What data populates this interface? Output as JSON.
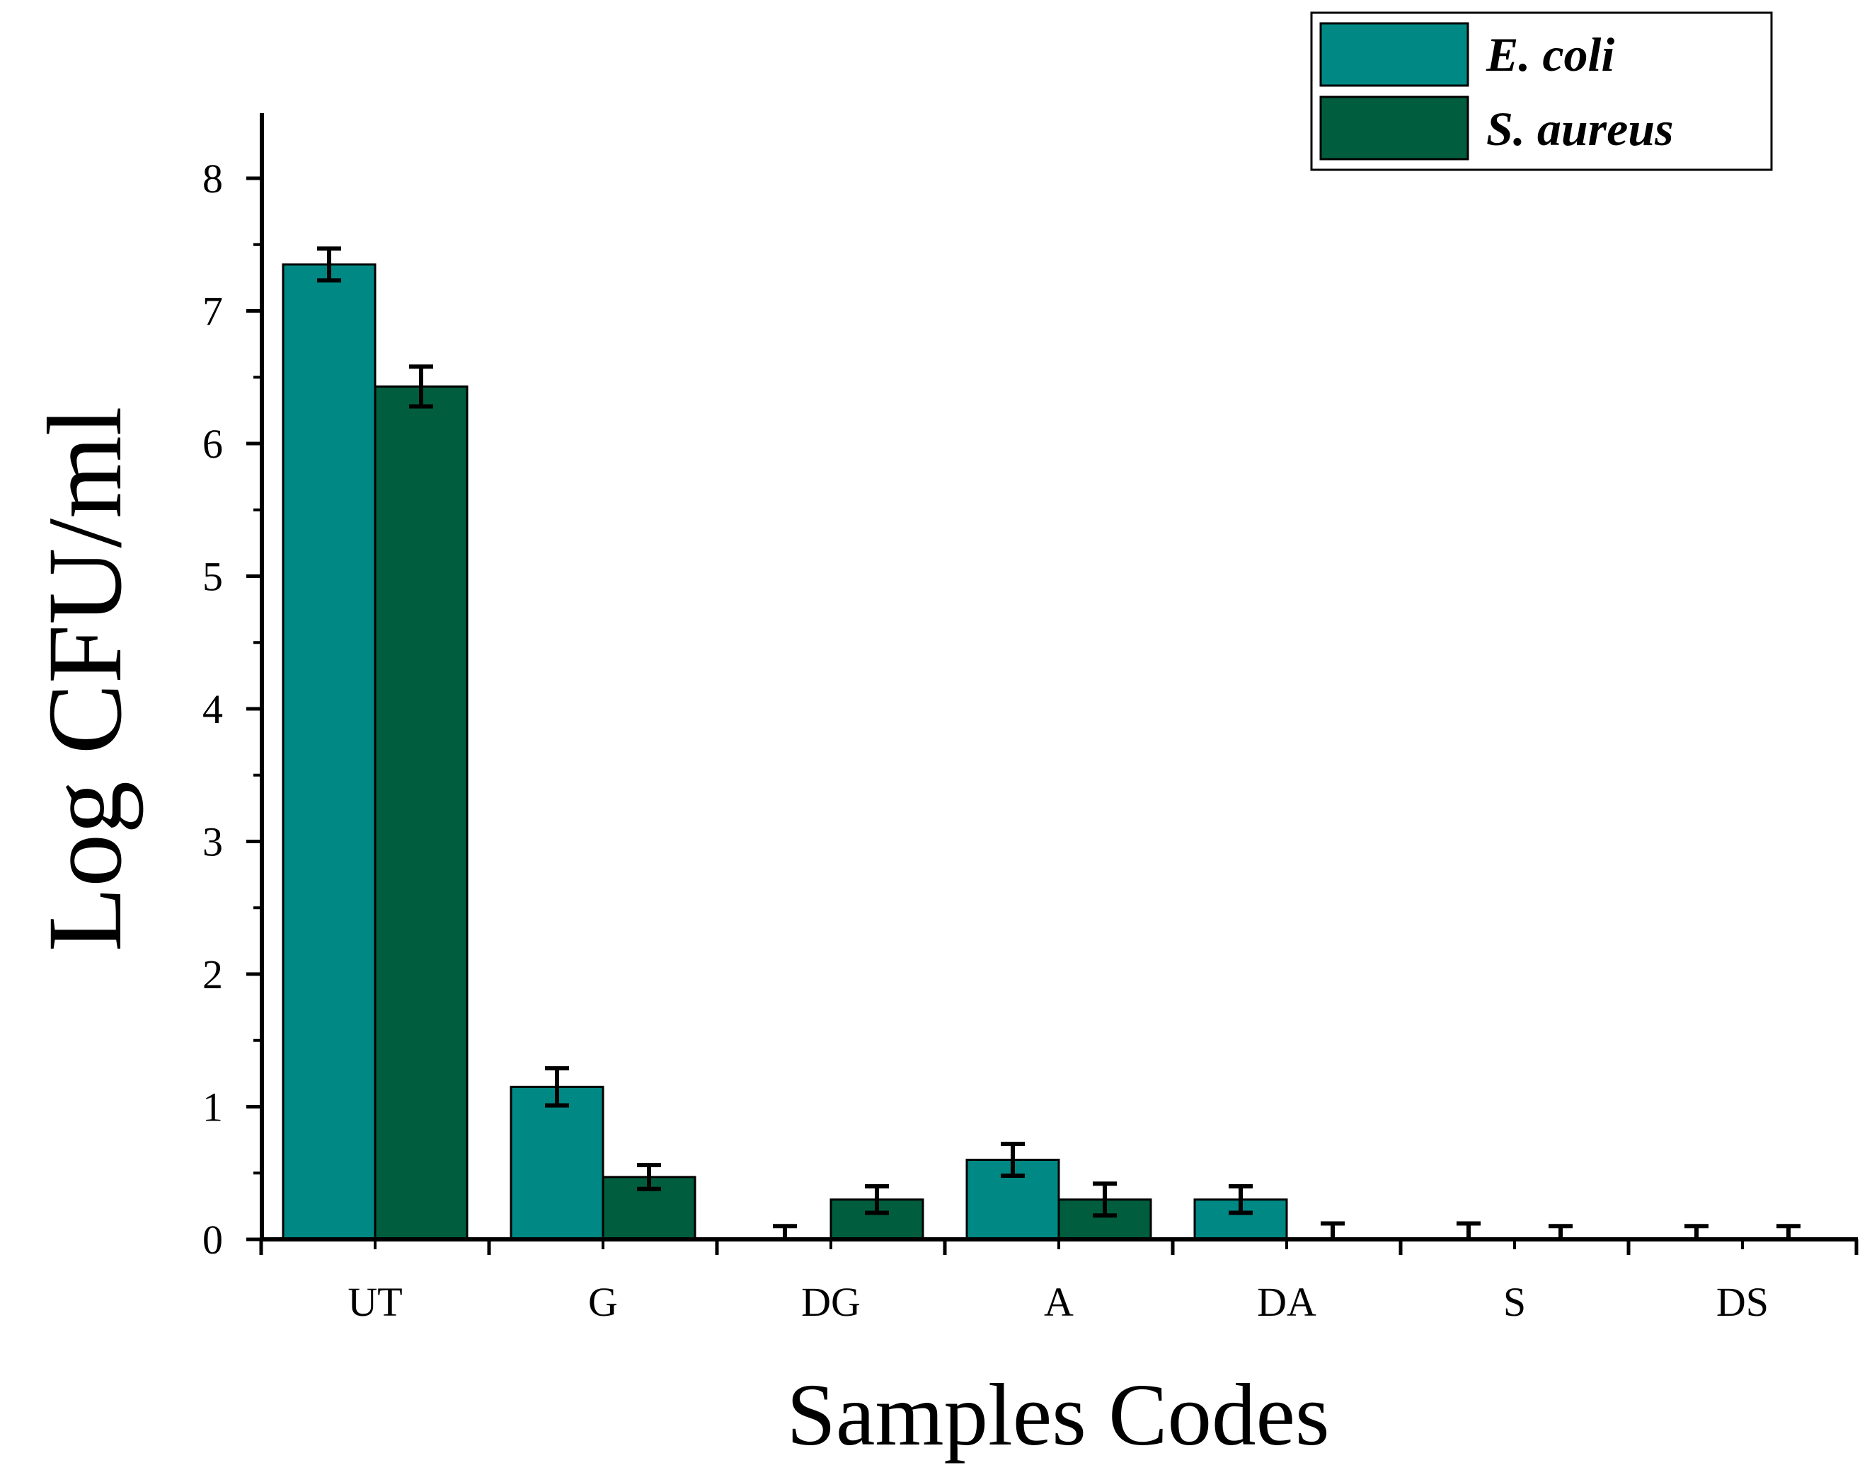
{
  "chart_data": {
    "type": "bar",
    "title": "",
    "xlabel": "Samples Codes",
    "ylabel": "Log CFU/ml",
    "categories": [
      "UT",
      "G",
      "DG",
      "A",
      "DA",
      "S",
      "DS"
    ],
    "ylim": [
      0,
      8.5
    ],
    "yticks": [
      0,
      1,
      2,
      3,
      4,
      5,
      6,
      7,
      8
    ],
    "legend_position": "top-right",
    "grid": false,
    "series": [
      {
        "name": "E. coli",
        "color": "#008984",
        "values": [
          7.35,
          1.15,
          0.0,
          0.6,
          0.3,
          0.0,
          0.0
        ],
        "errors": [
          0.12,
          0.14,
          0.1,
          0.12,
          0.1,
          0.12,
          0.1
        ]
      },
      {
        "name": "S. aureus",
        "color": "#005E3F",
        "values": [
          6.43,
          0.47,
          0.3,
          0.3,
          0.0,
          0.0,
          0.0
        ],
        "errors": [
          0.15,
          0.09,
          0.1,
          0.12,
          0.12,
          0.1,
          0.1
        ]
      }
    ]
  }
}
